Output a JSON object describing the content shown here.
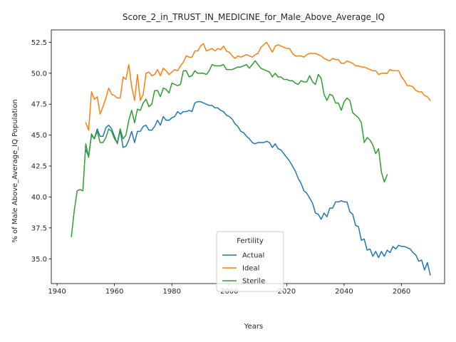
{
  "chart_data": {
    "type": "line",
    "title": "Score_2_in_TRUST_IN_MEDICINE_for_Male_Above_Average_IQ",
    "xlabel": "Years",
    "ylabel": "% of Male Above_Average_IQ Population",
    "xlim": [
      1938,
      2075
    ],
    "ylim": [
      33.0,
      53.5
    ],
    "xticks": [
      1940,
      1960,
      1980,
      2000,
      2020,
      2040,
      2060
    ],
    "yticks": [
      35.0,
      37.5,
      40.0,
      42.5,
      45.0,
      47.5,
      50.0,
      52.5
    ],
    "ytick_labels": [
      "35.0",
      "37.5",
      "40.0",
      "42.5",
      "45.0",
      "47.5",
      "50.0",
      "52.5"
    ],
    "grid": false,
    "legend": {
      "title": "Fertility",
      "placement": "lower center"
    },
    "series": [
      {
        "name": "Actual",
        "color": "#1f77b4",
        "x": [
          1950,
          1951,
          1952,
          1953,
          1954,
          1955,
          1956,
          1957,
          1958,
          1959,
          1960,
          1961,
          1962,
          1963,
          1964,
          1965,
          1966,
          1967,
          1968,
          1969,
          1970,
          1971,
          1972,
          1973,
          1974,
          1975,
          1976,
          1977,
          1978,
          1979,
          1980,
          1981,
          1982,
          1983,
          1984,
          1985,
          1986,
          1987,
          1988,
          1989,
          1990,
          1991,
          1992,
          1993,
          1994,
          1995,
          1996,
          1997,
          1998,
          1999,
          2000,
          2001,
          2002,
          2003,
          2004,
          2005,
          2006,
          2007,
          2008,
          2009,
          2010,
          2011,
          2012,
          2013,
          2014,
          2015,
          2016,
          2017,
          2018,
          2019,
          2020,
          2021,
          2022,
          2023,
          2024,
          2025,
          2026,
          2027,
          2028,
          2029,
          2030,
          2031,
          2032,
          2033,
          2034,
          2035,
          2036,
          2037,
          2038,
          2039,
          2040,
          2041,
          2042,
          2043,
          2044,
          2045,
          2046,
          2047,
          2048,
          2049,
          2050,
          2051,
          2052,
          2053,
          2054,
          2055,
          2056,
          2057,
          2058,
          2059,
          2060,
          2061,
          2062,
          2063,
          2064,
          2065,
          2066,
          2067,
          2068,
          2069,
          2070
        ],
        "values": [
          43.8,
          43.3,
          45.0,
          44.7,
          45.5,
          44.9,
          44.9,
          45.6,
          45.8,
          45.5,
          44.9,
          44.3,
          45.4,
          44.0,
          44.1,
          44.6,
          45.3,
          44.4,
          45.3,
          45.3,
          45.7,
          45.8,
          45.4,
          45.4,
          45.7,
          46.2,
          45.8,
          46.5,
          46.2,
          46.2,
          46.4,
          46.5,
          46.9,
          46.7,
          46.9,
          46.9,
          47.0,
          46.9,
          47.6,
          47.7,
          47.7,
          47.6,
          47.5,
          47.4,
          47.4,
          47.2,
          47.2,
          47.0,
          46.9,
          46.6,
          46.5,
          46.3,
          45.9,
          45.7,
          45.3,
          45.2,
          44.9,
          44.7,
          44.4,
          44.3,
          44.4,
          44.4,
          44.4,
          44.5,
          44.4,
          44.0,
          44.3,
          43.9,
          43.8,
          43.5,
          43.2,
          42.9,
          42.5,
          42.1,
          41.5,
          41.1,
          40.5,
          40.3,
          39.9,
          39.5,
          38.7,
          38.6,
          38.2,
          38.7,
          38.4,
          39.1,
          39.1,
          39.6,
          39.6,
          39.7,
          39.6,
          39.6,
          38.8,
          38.6,
          37.7,
          37.6,
          36.5,
          36.6,
          35.7,
          35.8,
          35.2,
          35.6,
          35.1,
          35.6,
          35.2,
          35.7,
          35.5,
          36.0,
          35.8,
          36.1,
          36.0,
          36.0,
          35.9,
          35.8,
          35.5,
          35.3,
          34.8,
          34.9,
          34.1,
          34.7,
          33.7
        ]
      },
      {
        "name": "Ideal",
        "color": "#ff7f0e",
        "x": [
          1950,
          1951,
          1952,
          1953,
          1954,
          1955,
          1956,
          1957,
          1958,
          1959,
          1960,
          1961,
          1962,
          1963,
          1964,
          1965,
          1966,
          1967,
          1968,
          1969,
          1970,
          1971,
          1972,
          1973,
          1974,
          1975,
          1976,
          1977,
          1978,
          1979,
          1980,
          1981,
          1982,
          1983,
          1984,
          1985,
          1986,
          1987,
          1988,
          1989,
          1990,
          1991,
          1992,
          1993,
          1994,
          1995,
          1996,
          1997,
          1998,
          1999,
          2000,
          2001,
          2002,
          2003,
          2004,
          2005,
          2006,
          2007,
          2008,
          2009,
          2010,
          2011,
          2012,
          2013,
          2014,
          2015,
          2016,
          2017,
          2018,
          2019,
          2020,
          2021,
          2022,
          2023,
          2024,
          2025,
          2026,
          2027,
          2028,
          2029,
          2030,
          2031,
          2032,
          2033,
          2034,
          2035,
          2036,
          2037,
          2038,
          2039,
          2040,
          2041,
          2042,
          2043,
          2044,
          2045,
          2046,
          2047,
          2048,
          2049,
          2050,
          2051,
          2052,
          2053,
          2054,
          2055,
          2056,
          2057,
          2058,
          2059,
          2060,
          2061,
          2062,
          2063,
          2064,
          2065,
          2066,
          2067,
          2068,
          2069,
          2070
        ],
        "values": [
          46.0,
          45.4,
          48.5,
          47.9,
          48.1,
          46.7,
          47.3,
          48.0,
          48.8,
          48.3,
          48.2,
          48.0,
          48.0,
          49.7,
          49.5,
          50.7,
          48.9,
          47.8,
          49.9,
          47.8,
          48.3,
          50.0,
          50.1,
          49.8,
          49.9,
          50.3,
          49.8,
          50.4,
          50.2,
          49.9,
          50.1,
          50.3,
          50.2,
          50.6,
          50.9,
          51.4,
          51.3,
          51.3,
          51.8,
          51.8,
          52.2,
          52.4,
          51.8,
          51.9,
          52.0,
          51.8,
          52.0,
          51.9,
          52.2,
          51.8,
          51.7,
          51.4,
          51.2,
          51.4,
          51.3,
          51.4,
          51.5,
          51.4,
          51.3,
          51.5,
          51.6,
          52.1,
          52.3,
          52.5,
          52.1,
          51.7,
          52.2,
          52.3,
          52.2,
          52.1,
          52.0,
          52.0,
          51.6,
          51.4,
          51.4,
          51.4,
          51.3,
          51.5,
          51.6,
          51.6,
          51.6,
          51.5,
          51.4,
          51.2,
          51.1,
          51.0,
          51.2,
          51.1,
          51.1,
          50.8,
          50.8,
          51.0,
          50.9,
          50.8,
          50.6,
          50.6,
          50.5,
          50.5,
          50.4,
          50.3,
          50.2,
          50.2,
          49.9,
          50.0,
          50.0,
          50.0,
          50.3,
          50.2,
          50.2,
          50.2,
          49.7,
          49.4,
          49.0,
          49.0,
          48.9,
          48.6,
          48.5,
          48.5,
          48.2,
          48.1,
          47.8
        ]
      },
      {
        "name": "Sterile",
        "color": "#2ca02c",
        "x": [
          1945,
          1946,
          1947,
          1948,
          1949,
          1950,
          1951,
          1952,
          1953,
          1954,
          1955,
          1956,
          1957,
          1958,
          1959,
          1960,
          1961,
          1962,
          1963,
          1964,
          1965,
          1966,
          1967,
          1968,
          1969,
          1970,
          1971,
          1972,
          1973,
          1974,
          1975,
          1976,
          1977,
          1978,
          1979,
          1980,
          1981,
          1982,
          1983,
          1984,
          1985,
          1986,
          1987,
          1988,
          1989,
          1990,
          1991,
          1992,
          1993,
          1994,
          1995,
          1996,
          1997,
          1998,
          1999,
          2000,
          2001,
          2002,
          2003,
          2004,
          2005,
          2006,
          2007,
          2008,
          2009,
          2010,
          2011,
          2012,
          2013,
          2014,
          2015,
          2016,
          2017,
          2018,
          2019,
          2020,
          2021,
          2022,
          2023,
          2024,
          2025,
          2026,
          2027,
          2028,
          2029,
          2030,
          2031,
          2032,
          2033,
          2034,
          2035,
          2036,
          2037,
          2038,
          2039,
          2040,
          2041,
          2042,
          2043,
          2044,
          2045,
          2046,
          2047,
          2048,
          2049,
          2050,
          2051,
          2052,
          2053,
          2054,
          2055
        ],
        "values": [
          36.8,
          38.9,
          40.5,
          40.6,
          40.5,
          44.3,
          43.2,
          45.1,
          44.7,
          45.3,
          44.4,
          44.4,
          44.8,
          45.5,
          45.3,
          44.7,
          44.4,
          45.5,
          44.7,
          45.0,
          46.2,
          47.0,
          46.0,
          47.1,
          47.0,
          47.6,
          47.9,
          47.3,
          47.5,
          48.6,
          48.6,
          48.1,
          48.8,
          48.7,
          48.4,
          49.2,
          49.1,
          49.0,
          49.1,
          50.2,
          50.2,
          49.7,
          49.8,
          50.2,
          50.0,
          50.0,
          50.0,
          49.9,
          50.2,
          50.7,
          50.6,
          50.6,
          50.6,
          50.7,
          50.3,
          50.3,
          50.3,
          50.4,
          50.5,
          50.5,
          50.6,
          50.7,
          50.4,
          50.7,
          51.0,
          50.7,
          50.4,
          50.3,
          50.2,
          50.1,
          49.7,
          50.0,
          49.7,
          49.7,
          49.5,
          49.5,
          49.4,
          49.4,
          49.2,
          49.1,
          49.4,
          49.3,
          49.3,
          49.8,
          49.3,
          49.1,
          49.9,
          49.6,
          48.3,
          47.8,
          48.3,
          48.2,
          47.6,
          47.6,
          47.0,
          47.7,
          48.0,
          47.8,
          46.8,
          46.6,
          46.4,
          46.0,
          44.4,
          44.8,
          44.6,
          44.2,
          43.5,
          43.9,
          42.0,
          41.2,
          41.8
        ]
      }
    ]
  }
}
